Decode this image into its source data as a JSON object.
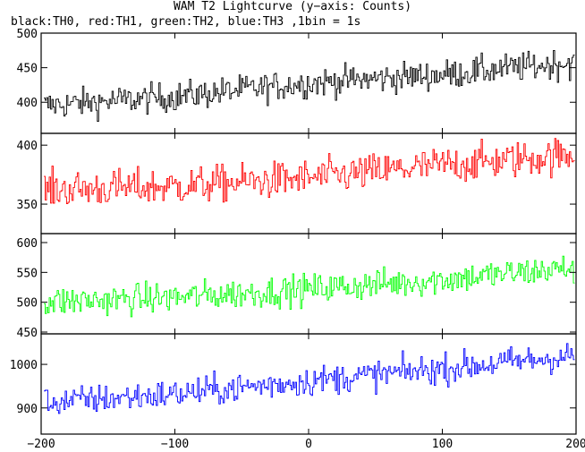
{
  "title": "WAM T2 Lightcurve (y−axis: Counts)",
  "subtitle": "black:TH0, red:TH1, green:TH2, blue:TH3 ,1bin = 1s",
  "chart_data": {
    "type": "line",
    "xlim": [
      -200,
      200
    ],
    "x_ticks": [
      -200,
      -100,
      0,
      100,
      200
    ],
    "x_tick_labels": [
      "−200",
      "−100",
      "0",
      "100",
      "200"
    ],
    "panels": [
      {
        "name": "TH0",
        "color": "#000000",
        "ylim": [
          355,
          500
        ],
        "yticks": [
          400,
          450,
          500
        ],
        "y_tick_labels": [
          "400",
          "450",
          "500"
        ],
        "trend": [
          [
            -200,
            395
          ],
          [
            -100,
            408
          ],
          [
            0,
            428
          ],
          [
            100,
            440
          ],
          [
            200,
            458
          ]
        ],
        "noise": 15
      },
      {
        "name": "TH1",
        "color": "#ff0000",
        "ylim": [
          325,
          410
        ],
        "yticks": [
          350,
          400
        ],
        "y_tick_labels": [
          "350",
          "400"
        ],
        "trend": [
          [
            -200,
            362
          ],
          [
            -100,
            365
          ],
          [
            0,
            372
          ],
          [
            100,
            383
          ],
          [
            200,
            392
          ]
        ],
        "noise": 11
      },
      {
        "name": "TH2",
        "color": "#00ff00",
        "ylim": [
          447,
          615
        ],
        "yticks": [
          450,
          500,
          550,
          600
        ],
        "y_tick_labels": [
          "450",
          "500",
          "550",
          "600"
        ],
        "trend": [
          [
            -200,
            500
          ],
          [
            -100,
            508
          ],
          [
            0,
            522
          ],
          [
            100,
            538
          ],
          [
            200,
            558
          ]
        ],
        "noise": 18
      },
      {
        "name": "TH3",
        "color": "#0000ff",
        "ylim": [
          840,
          1070
        ],
        "yticks": [
          900,
          1000
        ],
        "y_tick_labels": [
          "900",
          "1000"
        ],
        "trend": [
          [
            -200,
            912
          ],
          [
            -100,
            932
          ],
          [
            0,
            962
          ],
          [
            100,
            990
          ],
          [
            200,
            1020
          ]
        ],
        "noise": 24
      }
    ]
  }
}
